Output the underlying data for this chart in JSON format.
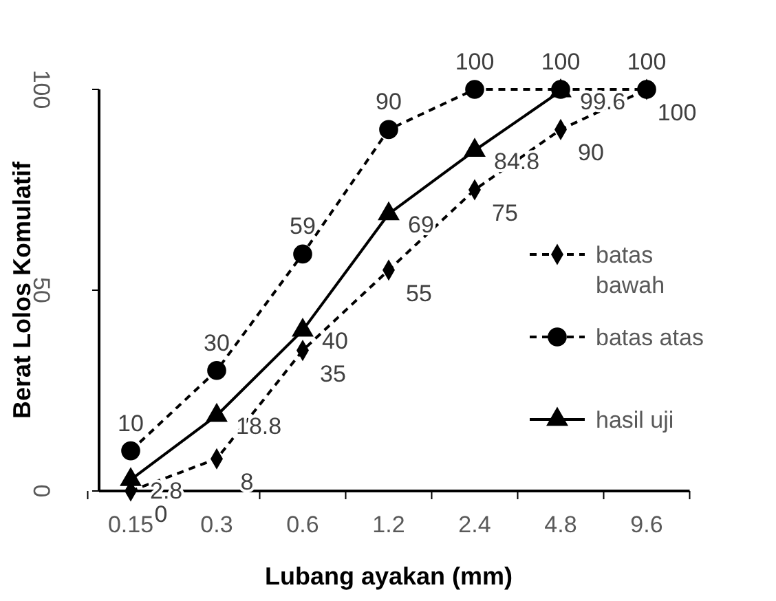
{
  "chart_data": {
    "type": "line",
    "xlabel": "Lubang ayakan (mm)",
    "ylabel": "Berat Lolos Komulatif",
    "categories": [
      "0.15",
      "0.3",
      "0.6",
      "1.2",
      "2.4",
      "4.8",
      "9.6"
    ],
    "series": [
      {
        "name": "batas bawah",
        "color": "#000000",
        "values": [
          0,
          8,
          35,
          55,
          75,
          90,
          100
        ],
        "marker": "diamond",
        "line_style": "dashed"
      },
      {
        "name": "batas atas",
        "color": "#000000",
        "values": [
          10,
          30,
          59,
          90,
          100,
          100,
          100
        ],
        "marker": "circle",
        "line_style": "dashed"
      },
      {
        "name": "hasil uji",
        "color": "#000000",
        "values": [
          2.8,
          18.8,
          40,
          69,
          84.8,
          99.6,
          null
        ],
        "marker": "triangle",
        "line_style": "solid"
      }
    ],
    "ylim": [
      0,
      100
    ],
    "yticks": [
      0,
      50,
      100
    ],
    "grid": false,
    "legend": "right",
    "data_labels": true
  }
}
